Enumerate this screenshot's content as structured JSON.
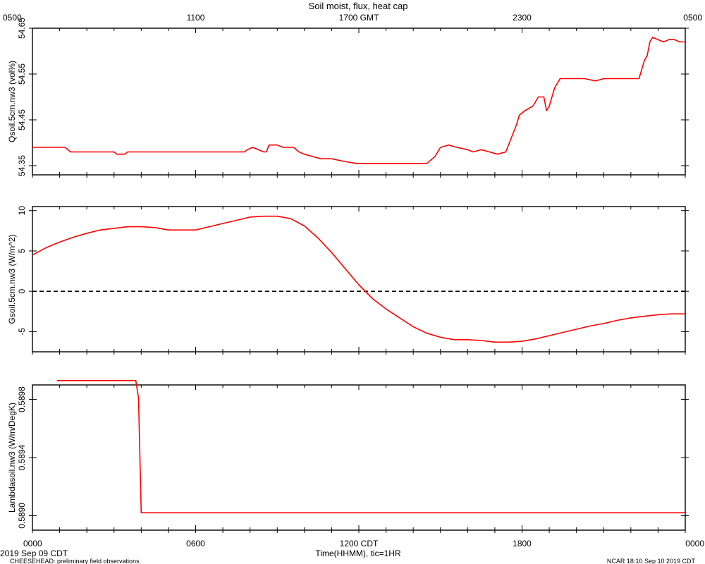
{
  "chart_data": {
    "type": "line",
    "title": "Soil moist, flux, heat cap",
    "top_axis_ticks": [
      "0500",
      "1100",
      "1700 GMT",
      "2300",
      "0500"
    ],
    "bottom_axis_ticks": [
      "0000",
      "0600",
      "1200 CDT",
      "1800",
      "0000"
    ],
    "xlabel": "Time(HHMM), tic=1HR",
    "date_label": "2019 Sep 09 CDT",
    "footer_left": "CHEESEHEAD: preliminary field observations",
    "footer_right": "NCAR 18:10 Sep 10 2019 CDT",
    "xlim_hours": [
      0,
      24
    ],
    "series_color": "#ff0000",
    "panels": [
      {
        "ylabel": "Qsoil.5cm.nw3 (vol%)",
        "ylim": [
          54.33,
          54.65
        ],
        "yticks": [
          "54.35",
          "54.45",
          "54.55",
          "54.65"
        ],
        "points": [
          [
            0,
            54.39
          ],
          [
            1.2,
            54.39
          ],
          [
            1.4,
            54.38
          ],
          [
            3.0,
            54.38
          ],
          [
            3.1,
            54.375
          ],
          [
            3.4,
            54.375
          ],
          [
            3.5,
            54.38
          ],
          [
            4.7,
            54.38
          ],
          [
            4.8,
            54.38
          ],
          [
            6.8,
            54.38
          ],
          [
            7.8,
            54.38
          ],
          [
            7.9,
            54.385
          ],
          [
            8.1,
            54.39
          ],
          [
            8.5,
            54.38
          ],
          [
            8.6,
            54.38
          ],
          [
            8.7,
            54.395
          ],
          [
            9.0,
            54.395
          ],
          [
            9.2,
            54.39
          ],
          [
            9.6,
            54.39
          ],
          [
            9.8,
            54.38
          ],
          [
            10.0,
            54.375
          ],
          [
            10.3,
            54.37
          ],
          [
            10.6,
            54.365
          ],
          [
            11.0,
            54.365
          ],
          [
            11.4,
            54.36
          ],
          [
            11.9,
            54.355
          ],
          [
            12.2,
            54.355
          ],
          [
            13.0,
            54.355
          ],
          [
            13.5,
            54.355
          ],
          [
            14.0,
            54.355
          ],
          [
            14.5,
            54.355
          ],
          [
            14.8,
            54.37
          ],
          [
            15.0,
            54.39
          ],
          [
            15.3,
            54.395
          ],
          [
            15.6,
            54.39
          ],
          [
            16.0,
            54.385
          ],
          [
            16.2,
            54.38
          ],
          [
            16.5,
            54.385
          ],
          [
            16.8,
            54.38
          ],
          [
            17.1,
            54.375
          ],
          [
            17.4,
            54.38
          ],
          [
            17.6,
            54.41
          ],
          [
            17.8,
            54.44
          ],
          [
            17.9,
            54.46
          ],
          [
            18.1,
            54.47
          ],
          [
            18.4,
            54.48
          ],
          [
            18.6,
            54.5
          ],
          [
            18.8,
            54.5
          ],
          [
            18.9,
            54.47
          ],
          [
            19.0,
            54.48
          ],
          [
            19.1,
            54.5
          ],
          [
            19.2,
            54.52
          ],
          [
            19.4,
            54.54
          ],
          [
            19.8,
            54.54
          ],
          [
            20.3,
            54.54
          ],
          [
            20.7,
            54.535
          ],
          [
            21.0,
            54.54
          ],
          [
            22.0,
            54.54
          ],
          [
            22.3,
            54.54
          ],
          [
            22.4,
            54.56
          ],
          [
            22.5,
            54.58
          ],
          [
            22.6,
            54.59
          ],
          [
            22.7,
            54.62
          ],
          [
            22.8,
            54.63
          ],
          [
            23.0,
            54.625
          ],
          [
            23.2,
            54.62
          ],
          [
            23.4,
            54.625
          ],
          [
            23.6,
            54.625
          ],
          [
            23.8,
            54.62
          ],
          [
            24,
            54.62
          ]
        ]
      },
      {
        "ylabel": "Gsoil.5cm.nw3 (W/m^2)",
        "ylim": [
          -7.5,
          10.5
        ],
        "yticks": [
          "-5",
          "0",
          "5",
          "10"
        ],
        "zero_line": true,
        "points": [
          [
            0,
            4.5
          ],
          [
            0.5,
            5.4
          ],
          [
            1.0,
            6.1
          ],
          [
            1.5,
            6.7
          ],
          [
            2.0,
            7.2
          ],
          [
            2.5,
            7.6
          ],
          [
            3.0,
            7.8
          ],
          [
            3.5,
            8.0
          ],
          [
            4.0,
            8.0
          ],
          [
            4.5,
            7.9
          ],
          [
            5.0,
            7.6
          ],
          [
            5.5,
            7.6
          ],
          [
            6.0,
            7.6
          ],
          [
            6.5,
            8.0
          ],
          [
            7.0,
            8.4
          ],
          [
            7.5,
            8.8
          ],
          [
            8.0,
            9.2
          ],
          [
            8.5,
            9.3
          ],
          [
            9.0,
            9.3
          ],
          [
            9.5,
            9.0
          ],
          [
            10.0,
            8.1
          ],
          [
            10.5,
            6.6
          ],
          [
            11.0,
            4.8
          ],
          [
            11.5,
            2.8
          ],
          [
            12.0,
            0.8
          ],
          [
            12.5,
            -0.9
          ],
          [
            13.0,
            -2.2
          ],
          [
            13.5,
            -3.3
          ],
          [
            14.0,
            -4.4
          ],
          [
            14.5,
            -5.2
          ],
          [
            15.0,
            -5.7
          ],
          [
            15.5,
            -6.0
          ],
          [
            16.0,
            -6.0
          ],
          [
            16.5,
            -6.1
          ],
          [
            17.0,
            -6.3
          ],
          [
            17.5,
            -6.3
          ],
          [
            18.0,
            -6.2
          ],
          [
            18.5,
            -5.9
          ],
          [
            19.0,
            -5.5
          ],
          [
            19.5,
            -5.1
          ],
          [
            20.0,
            -4.7
          ],
          [
            20.5,
            -4.3
          ],
          [
            21.0,
            -4.0
          ],
          [
            21.5,
            -3.6
          ],
          [
            22.0,
            -3.3
          ],
          [
            22.5,
            -3.1
          ],
          [
            23.0,
            -2.9
          ],
          [
            23.5,
            -2.8
          ],
          [
            24.0,
            -2.8
          ]
        ]
      },
      {
        "ylabel": "Lambdasoil.nw3 (W/m/DegK)",
        "ylim": [
          0.5889,
          0.5899
        ],
        "yticks": [
          "0.5890",
          "0.5894",
          "0.5898"
        ],
        "points": [
          [
            0.9,
            0.58993
          ],
          [
            3.8,
            0.58993
          ],
          [
            3.9,
            0.58981
          ],
          [
            4.0,
            0.58902
          ],
          [
            24,
            0.58902
          ]
        ]
      }
    ]
  }
}
